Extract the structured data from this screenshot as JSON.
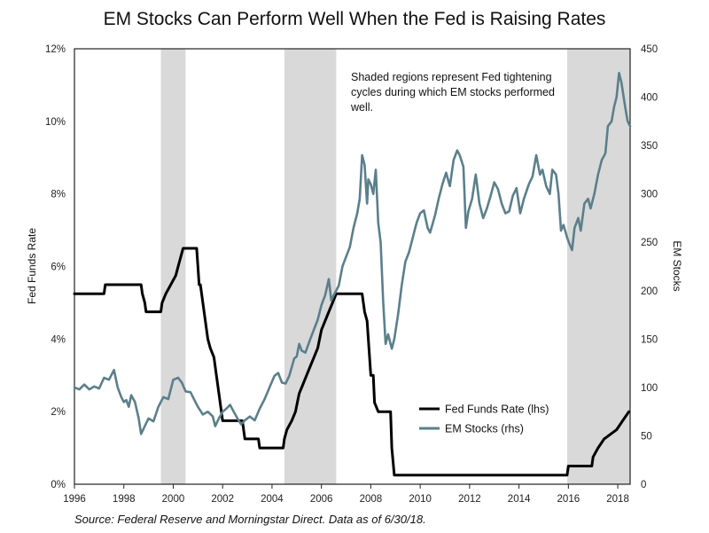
{
  "chart_data": {
    "type": "line",
    "title": "EM Stocks Can Perform Well When the Fed is Raising Rates",
    "ylabel_left": "Fed Funds Rate",
    "ylabel_right": "EM Stocks",
    "ylim_left": [
      0,
      12
    ],
    "ylim_right": [
      0,
      450
    ],
    "xlim": [
      1996,
      2018.5
    ],
    "x_ticks": [
      "1996",
      "1998",
      "2000",
      "2002",
      "2004",
      "2006",
      "2008",
      "2010",
      "2012",
      "2014",
      "2016",
      "2018"
    ],
    "y_left_ticks": [
      "0%",
      "2%",
      "4%",
      "6%",
      "8%",
      "10%",
      "12%"
    ],
    "y_right_ticks": [
      "0",
      "50",
      "100",
      "150",
      "200",
      "250",
      "300",
      "350",
      "400",
      "450"
    ],
    "shaded_periods": [
      [
        1999.5,
        2000.5
      ],
      [
        2004.5,
        2006.6
      ],
      [
        2015.95,
        2018.5
      ]
    ],
    "annotation": "Shaded regions represent Fed tightening cycles during which EM stocks performed well.",
    "annotation_lines": [
      "Shaded regions represent Fed tightening",
      "cycles during which EM stocks performed",
      "well."
    ],
    "series": [
      {
        "name": "Fed Funds Rate (lhs)",
        "axis": "left",
        "color": "#000000",
        "points": [
          [
            1996.0,
            5.25
          ],
          [
            1997.2,
            5.25
          ],
          [
            1997.25,
            5.5
          ],
          [
            1998.7,
            5.5
          ],
          [
            1998.75,
            5.25
          ],
          [
            1998.85,
            5.0
          ],
          [
            1998.9,
            4.75
          ],
          [
            1999.5,
            4.75
          ],
          [
            1999.55,
            5.0
          ],
          [
            1999.7,
            5.25
          ],
          [
            1999.9,
            5.5
          ],
          [
            2000.1,
            5.75
          ],
          [
            2000.2,
            6.0
          ],
          [
            2000.4,
            6.5
          ],
          [
            2000.95,
            6.5
          ],
          [
            2001.05,
            5.5
          ],
          [
            2001.1,
            5.5
          ],
          [
            2001.2,
            5.0
          ],
          [
            2001.3,
            4.5
          ],
          [
            2001.4,
            4.0
          ],
          [
            2001.5,
            3.75
          ],
          [
            2001.65,
            3.5
          ],
          [
            2001.75,
            3.0
          ],
          [
            2001.85,
            2.5
          ],
          [
            2001.95,
            2.0
          ],
          [
            2002.0,
            1.75
          ],
          [
            2002.8,
            1.75
          ],
          [
            2002.9,
            1.25
          ],
          [
            2003.45,
            1.25
          ],
          [
            2003.5,
            1.0
          ],
          [
            2004.45,
            1.0
          ],
          [
            2004.5,
            1.25
          ],
          [
            2004.6,
            1.5
          ],
          [
            2004.8,
            1.75
          ],
          [
            2004.95,
            2.0
          ],
          [
            2005.1,
            2.5
          ],
          [
            2005.25,
            2.75
          ],
          [
            2005.4,
            3.0
          ],
          [
            2005.55,
            3.25
          ],
          [
            2005.7,
            3.5
          ],
          [
            2005.85,
            3.75
          ],
          [
            2006.0,
            4.25
          ],
          [
            2006.15,
            4.5
          ],
          [
            2006.3,
            4.75
          ],
          [
            2006.45,
            5.0
          ],
          [
            2006.6,
            5.25
          ],
          [
            2007.65,
            5.25
          ],
          [
            2007.75,
            4.75
          ],
          [
            2007.85,
            4.5
          ],
          [
            2008.0,
            3.0
          ],
          [
            2008.1,
            3.0
          ],
          [
            2008.15,
            2.25
          ],
          [
            2008.3,
            2.0
          ],
          [
            2008.8,
            2.0
          ],
          [
            2008.85,
            1.0
          ],
          [
            2008.95,
            0.25
          ],
          [
            2015.95,
            0.25
          ],
          [
            2016.0,
            0.5
          ],
          [
            2016.95,
            0.5
          ],
          [
            2017.0,
            0.75
          ],
          [
            2017.2,
            1.0
          ],
          [
            2017.45,
            1.25
          ],
          [
            2017.95,
            1.5
          ],
          [
            2018.2,
            1.75
          ],
          [
            2018.45,
            2.0
          ]
        ]
      },
      {
        "name": "EM Stocks (rhs)",
        "axis": "right",
        "color": "#5b7f8c",
        "points": [
          [
            1996.0,
            100
          ],
          [
            1996.2,
            98
          ],
          [
            1996.4,
            103
          ],
          [
            1996.6,
            98
          ],
          [
            1996.8,
            101
          ],
          [
            1997.0,
            99
          ],
          [
            1997.2,
            110
          ],
          [
            1997.4,
            108
          ],
          [
            1997.6,
            118
          ],
          [
            1997.75,
            100
          ],
          [
            1997.9,
            90
          ],
          [
            1998.0,
            85
          ],
          [
            1998.1,
            87
          ],
          [
            1998.2,
            80
          ],
          [
            1998.3,
            92
          ],
          [
            1998.45,
            85
          ],
          [
            1998.6,
            68
          ],
          [
            1998.7,
            52
          ],
          [
            1998.85,
            60
          ],
          [
            1999.0,
            68
          ],
          [
            1999.2,
            65
          ],
          [
            1999.4,
            80
          ],
          [
            1999.6,
            90
          ],
          [
            1999.8,
            88
          ],
          [
            2000.0,
            108
          ],
          [
            2000.2,
            110
          ],
          [
            2000.35,
            105
          ],
          [
            2000.5,
            96
          ],
          [
            2000.7,
            95
          ],
          [
            2000.9,
            85
          ],
          [
            2001.0,
            80
          ],
          [
            2001.2,
            72
          ],
          [
            2001.4,
            75
          ],
          [
            2001.6,
            70
          ],
          [
            2001.7,
            60
          ],
          [
            2001.85,
            68
          ],
          [
            2002.0,
            75
          ],
          [
            2002.15,
            78
          ],
          [
            2002.3,
            82
          ],
          [
            2002.45,
            75
          ],
          [
            2002.6,
            68
          ],
          [
            2002.75,
            62
          ],
          [
            2002.9,
            66
          ],
          [
            2003.1,
            70
          ],
          [
            2003.3,
            66
          ],
          [
            2003.5,
            78
          ],
          [
            2003.7,
            88
          ],
          [
            2003.9,
            100
          ],
          [
            2004.1,
            112
          ],
          [
            2004.25,
            115
          ],
          [
            2004.4,
            105
          ],
          [
            2004.55,
            104
          ],
          [
            2004.7,
            112
          ],
          [
            2004.9,
            130
          ],
          [
            2005.0,
            132
          ],
          [
            2005.1,
            145
          ],
          [
            2005.2,
            138
          ],
          [
            2005.35,
            136
          ],
          [
            2005.55,
            150
          ],
          [
            2005.7,
            160
          ],
          [
            2005.85,
            170
          ],
          [
            2006.0,
            185
          ],
          [
            2006.15,
            195
          ],
          [
            2006.3,
            212
          ],
          [
            2006.4,
            190
          ],
          [
            2006.55,
            198
          ],
          [
            2006.7,
            205
          ],
          [
            2006.85,
            225
          ],
          [
            2007.0,
            235
          ],
          [
            2007.15,
            245
          ],
          [
            2007.3,
            265
          ],
          [
            2007.45,
            280
          ],
          [
            2007.55,
            295
          ],
          [
            2007.65,
            340
          ],
          [
            2007.75,
            330
          ],
          [
            2007.85,
            290
          ],
          [
            2007.9,
            315
          ],
          [
            2008.0,
            310
          ],
          [
            2008.1,
            300
          ],
          [
            2008.2,
            325
          ],
          [
            2008.3,
            270
          ],
          [
            2008.4,
            250
          ],
          [
            2008.5,
            190
          ],
          [
            2008.6,
            145
          ],
          [
            2008.7,
            155
          ],
          [
            2008.85,
            140
          ],
          [
            2008.95,
            150
          ],
          [
            2009.1,
            175
          ],
          [
            2009.25,
            205
          ],
          [
            2009.4,
            230
          ],
          [
            2009.55,
            240
          ],
          [
            2009.7,
            255
          ],
          [
            2009.85,
            270
          ],
          [
            2010.0,
            280
          ],
          [
            2010.15,
            283
          ],
          [
            2010.3,
            265
          ],
          [
            2010.4,
            260
          ],
          [
            2010.6,
            278
          ],
          [
            2010.75,
            295
          ],
          [
            2010.9,
            310
          ],
          [
            2011.05,
            322
          ],
          [
            2011.2,
            308
          ],
          [
            2011.35,
            335
          ],
          [
            2011.5,
            345
          ],
          [
            2011.6,
            340
          ],
          [
            2011.75,
            328
          ],
          [
            2011.85,
            265
          ],
          [
            2011.95,
            282
          ],
          [
            2012.1,
            295
          ],
          [
            2012.25,
            320
          ],
          [
            2012.4,
            290
          ],
          [
            2012.55,
            275
          ],
          [
            2012.7,
            285
          ],
          [
            2012.85,
            298
          ],
          [
            2013.0,
            312
          ],
          [
            2013.15,
            305
          ],
          [
            2013.3,
            290
          ],
          [
            2013.45,
            280
          ],
          [
            2013.6,
            282
          ],
          [
            2013.75,
            298
          ],
          [
            2013.9,
            306
          ],
          [
            2014.05,
            280
          ],
          [
            2014.2,
            295
          ],
          [
            2014.4,
            310
          ],
          [
            2014.55,
            318
          ],
          [
            2014.7,
            340
          ],
          [
            2014.85,
            320
          ],
          [
            2014.95,
            325
          ],
          [
            2015.1,
            308
          ],
          [
            2015.25,
            300
          ],
          [
            2015.35,
            325
          ],
          [
            2015.5,
            320
          ],
          [
            2015.6,
            300
          ],
          [
            2015.7,
            262
          ],
          [
            2015.8,
            268
          ],
          [
            2015.95,
            255
          ],
          [
            2016.05,
            248
          ],
          [
            2016.15,
            242
          ],
          [
            2016.25,
            265
          ],
          [
            2016.4,
            275
          ],
          [
            2016.5,
            262
          ],
          [
            2016.65,
            290
          ],
          [
            2016.8,
            295
          ],
          [
            2016.9,
            285
          ],
          [
            2017.05,
            300
          ],
          [
            2017.2,
            320
          ],
          [
            2017.35,
            335
          ],
          [
            2017.5,
            342
          ],
          [
            2017.6,
            370
          ],
          [
            2017.75,
            375
          ],
          [
            2017.85,
            390
          ],
          [
            2017.95,
            400
          ],
          [
            2018.05,
            425
          ],
          [
            2018.15,
            415
          ],
          [
            2018.3,
            390
          ],
          [
            2018.4,
            375
          ],
          [
            2018.5,
            370
          ]
        ]
      }
    ]
  },
  "source": "Source: Federal Reserve and Morningstar Direct. Data as of 6/30/18."
}
